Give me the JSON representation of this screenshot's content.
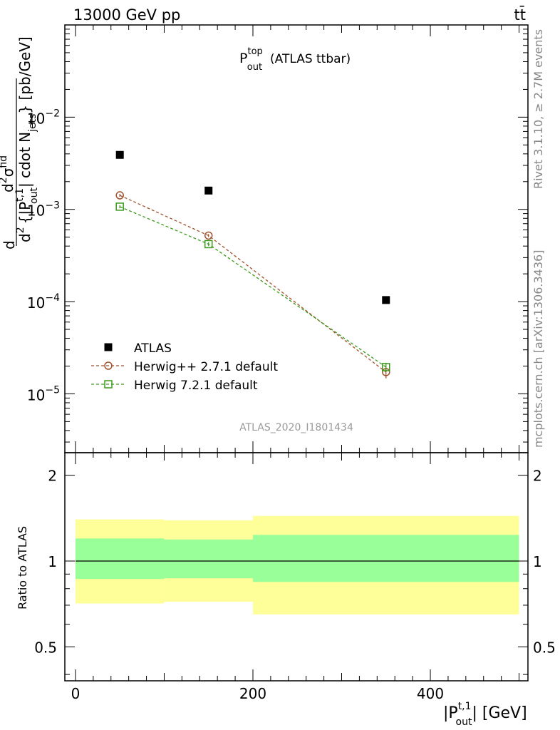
{
  "header": {
    "left": "13000 GeV pp",
    "right": "tt̄"
  },
  "title": {
    "main": "P",
    "sup": "top",
    "sub": "out",
    "suffix": "(ATLAS ttbar)"
  },
  "analysis_label": "ATLAS_2020_I1801434",
  "side_labels": {
    "rivet": "Rivet 3.1.10, ≥ 2.7M events",
    "mcplots": "mcplots.cern.ch [arXiv:1306.3436]"
  },
  "axes": {
    "ylabel_main": "d²σ^fid / d²{|P_out^t,1| cdot N_jets} [pb/GeV]",
    "ylabel_main_parts": {
      "d": "d",
      "sigma": "d",
      "sigma2": "σ",
      "fid": "fid",
      "d2": "d",
      "two": "2",
      "brace": "{|P",
      "t1": "t,1",
      "out": "out",
      "cdot": "| cdot N",
      "jets": "jets",
      "close": "} [pb/GeV]"
    },
    "ylabel_ratio": "Ratio to ATLAS",
    "xlabel_parts": {
      "p": "|P",
      "sup": "t,1",
      "sub": "out",
      "suffix": "| [GeV]"
    },
    "xticks": [
      "0",
      "200",
      "400"
    ],
    "yticks_main": [
      {
        "base": "10",
        "exp": "−2",
        "value": 0.01
      },
      {
        "base": "10",
        "exp": "−3",
        "value": 0.001
      },
      {
        "base": "10",
        "exp": "−4",
        "value": 0.0001
      },
      {
        "base": "10",
        "exp": "−5",
        "value": 1e-05
      }
    ],
    "yticks_ratio": [
      "2",
      "1",
      "0.5"
    ]
  },
  "legend": [
    {
      "label": "ATLAS",
      "marker": "square-filled",
      "color": "#000000"
    },
    {
      "label": "Herwig++ 2.7.1 default",
      "marker": "circle-open",
      "color": "#a0522d"
    },
    {
      "label": "Herwig 7.2.1 default",
      "marker": "square-open",
      "color": "#3a9a1a"
    }
  ],
  "chart_data": {
    "type": "scatter",
    "title": "P_out^top (ATLAS ttbar)",
    "xlabel": "|P_out^t,1| [GeV]",
    "ylabel": "d²σ^fid / d²{|P_out^t,1| cdot N_jets} [pb/GeV]",
    "xlim": [
      -12,
      510
    ],
    "ylim": [
      2.3e-06,
      0.1
    ],
    "yscale": "log",
    "bins": [
      [
        0,
        100
      ],
      [
        100,
        200
      ],
      [
        200,
        500
      ]
    ],
    "x": [
      50,
      150,
      350
    ],
    "series": [
      {
        "name": "ATLAS",
        "values": [
          0.0039,
          0.0016,
          0.000104
        ],
        "color": "#000000",
        "marker": "square-filled",
        "line": false
      },
      {
        "name": "Herwig++ 2.7.1 default",
        "values": [
          0.00142,
          0.00052,
          1.72e-05
        ],
        "errors": [
          5e-05,
          2e-05,
          2.5e-06
        ],
        "color": "#a0522d",
        "marker": "circle-open",
        "line": true
      },
      {
        "name": "Herwig 7.2.1 default",
        "values": [
          0.00107,
          0.00042,
          1.95e-05
        ],
        "errors": [
          4e-05,
          2e-05,
          2.2e-06
        ],
        "color": "#3a9a1a",
        "marker": "square-open",
        "line": true
      }
    ],
    "ratio": {
      "ylabel": "Ratio to ATLAS",
      "ylim": [
        0.38,
        2.4
      ],
      "yscale": "log",
      "inner_band": [
        [
          0.865,
          1.2
        ],
        [
          0.87,
          1.19
        ],
        [
          0.845,
          1.235
        ]
      ],
      "outer_band": [
        [
          0.71,
          1.4
        ],
        [
          0.72,
          1.39
        ],
        [
          0.65,
          1.44
        ]
      ],
      "inner_color": "#99ff99",
      "outer_color": "#ffff99"
    }
  }
}
